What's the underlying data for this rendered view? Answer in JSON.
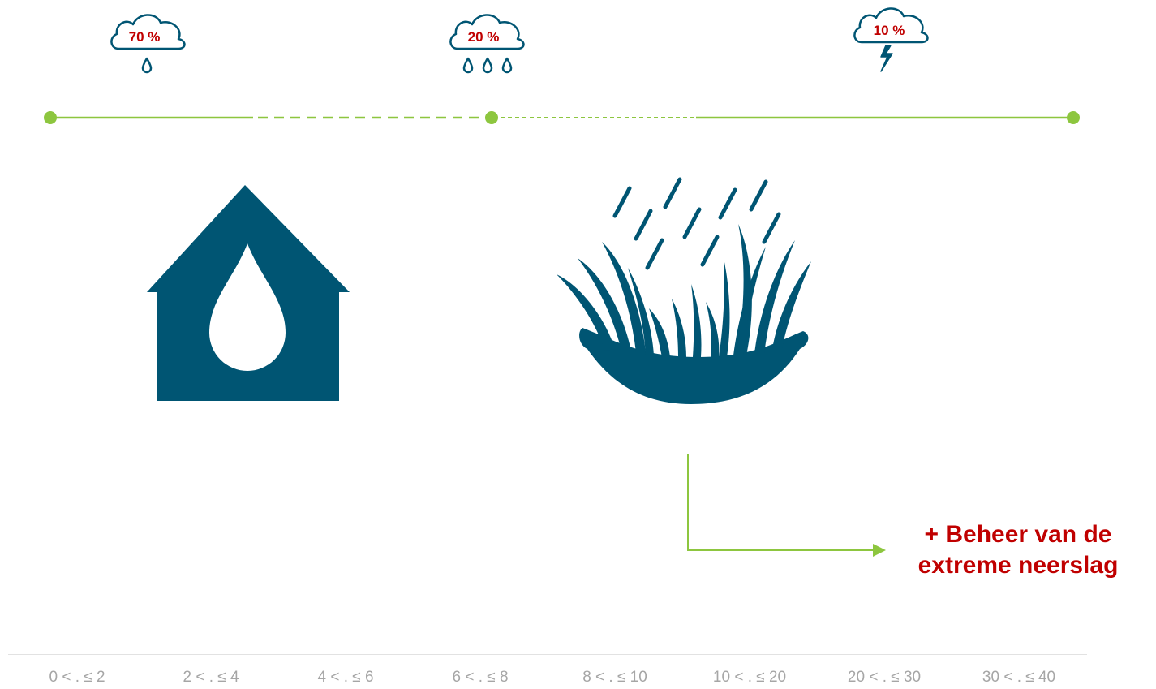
{
  "clouds": [
    {
      "label": "70 %",
      "icon": "rain-cloud-icon"
    },
    {
      "label": "20 %",
      "icon": "heavy-rain-cloud-icon"
    },
    {
      "label": "10 %",
      "icon": "storm-cloud-icon"
    }
  ],
  "callout": {
    "line1": "+ Beheer van de",
    "line2": "extreme neerslag"
  },
  "axis": {
    "ticks": [
      "0 < . ≤ 2",
      "2 < . ≤ 4",
      "4 < . ≤ 6",
      "6 < . ≤ 8",
      "8 < . ≤ 10",
      "10 < . ≤ 20",
      "20 < . ≤ 30",
      "30 < . ≤ 40"
    ]
  },
  "icons": {
    "house": "house-water-drop-icon",
    "grass": "rain-on-grass-icon"
  },
  "colors": {
    "primary": "#005573",
    "accent": "#8dc63f",
    "highlight": "#c00000",
    "axis_text": "#a6a6a6"
  }
}
